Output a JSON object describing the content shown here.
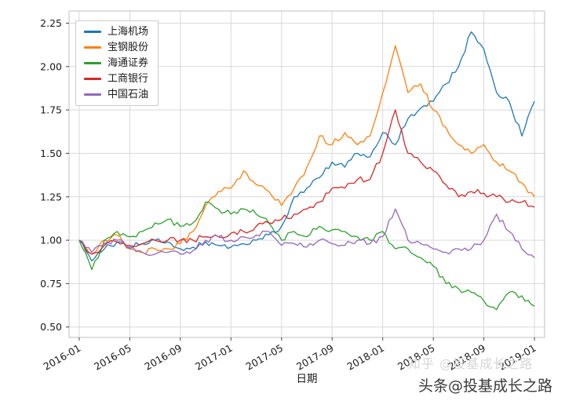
{
  "chart_data": {
    "type": "line",
    "title": "",
    "xlabel": "日期",
    "ylabel": "",
    "grid": true,
    "legend_position": "upper left",
    "x_start": "2016-01",
    "x_end": "2019-01",
    "x_interval": "monthly",
    "ylim": [
      0.44,
      2.32
    ],
    "yticks": [
      0.5,
      0.75,
      1.0,
      1.25,
      1.5,
      1.75,
      2.0,
      2.25
    ],
    "ytick_labels": [
      "0.50",
      "0.75",
      "1.00",
      "1.25",
      "1.50",
      "1.75",
      "2.00",
      "2.25"
    ],
    "xtick_positions": [
      0,
      4,
      8,
      12,
      16,
      20,
      24,
      28,
      32,
      36
    ],
    "xtick_labels": [
      "2016-01",
      "2016-05",
      "2016-09",
      "2017-01",
      "2017-05",
      "2017-09",
      "2018-01",
      "2018-05",
      "2018-09",
      "2019-01"
    ],
    "series": [
      {
        "name": "上海机场",
        "color": "#1f77b4",
        "values": [
          1.0,
          0.88,
          0.95,
          0.99,
          0.96,
          0.98,
          1.0,
          0.99,
          0.95,
          0.96,
          0.99,
          0.97,
          0.96,
          0.98,
          1.0,
          1.03,
          1.08,
          1.25,
          1.3,
          1.36,
          1.45,
          1.42,
          1.5,
          1.48,
          1.62,
          1.55,
          1.7,
          1.76,
          1.8,
          1.9,
          2.0,
          2.2,
          2.1,
          1.85,
          1.8,
          1.6,
          1.8
        ]
      },
      {
        "name": "宝钢股份",
        "color": "#ff7f0e",
        "values": [
          1.0,
          0.92,
          1.0,
          1.03,
          0.95,
          0.93,
          0.95,
          0.95,
          0.98,
          1.05,
          1.2,
          1.28,
          1.3,
          1.4,
          1.32,
          1.28,
          1.2,
          1.3,
          1.42,
          1.6,
          1.55,
          1.62,
          1.55,
          1.6,
          1.85,
          2.12,
          1.85,
          1.9,
          1.75,
          1.65,
          1.55,
          1.5,
          1.55,
          1.45,
          1.4,
          1.33,
          1.25
        ]
      },
      {
        "name": "海通证券",
        "color": "#2ca02c",
        "values": [
          1.0,
          0.83,
          1.0,
          1.05,
          1.02,
          1.05,
          1.1,
          1.12,
          1.08,
          1.1,
          1.22,
          1.18,
          1.15,
          1.18,
          1.15,
          1.1,
          1.0,
          1.05,
          1.02,
          1.08,
          1.06,
          1.05,
          1.02,
          1.0,
          1.05,
          0.95,
          0.95,
          0.9,
          0.85,
          0.75,
          0.72,
          0.7,
          0.65,
          0.6,
          0.7,
          0.68,
          0.62
        ]
      },
      {
        "name": "工商银行",
        "color": "#d62728",
        "values": [
          1.0,
          0.92,
          0.97,
          0.99,
          0.97,
          0.98,
          1.0,
          1.0,
          1.0,
          1.0,
          1.02,
          1.02,
          1.04,
          1.05,
          1.08,
          1.1,
          1.12,
          1.15,
          1.18,
          1.22,
          1.3,
          1.3,
          1.35,
          1.35,
          1.5,
          1.75,
          1.5,
          1.45,
          1.4,
          1.32,
          1.25,
          1.28,
          1.27,
          1.25,
          1.22,
          1.22,
          1.19
        ]
      },
      {
        "name": "中国石油",
        "color": "#9467bd",
        "values": [
          1.0,
          0.93,
          0.98,
          1.0,
          0.95,
          0.93,
          0.92,
          0.93,
          0.92,
          0.94,
          1.0,
          1.02,
          1.0,
          1.02,
          1.03,
          1.05,
          0.97,
          0.98,
          0.96,
          1.0,
          0.98,
          0.97,
          1.0,
          0.98,
          1.02,
          1.18,
          1.0,
          0.98,
          0.95,
          0.93,
          0.95,
          0.95,
          1.0,
          1.15,
          1.05,
          0.95,
          0.9
        ]
      }
    ]
  },
  "watermarks": {
    "secondary": "知乎 @投基成长之路",
    "primary": "头条@投基成长之路"
  }
}
